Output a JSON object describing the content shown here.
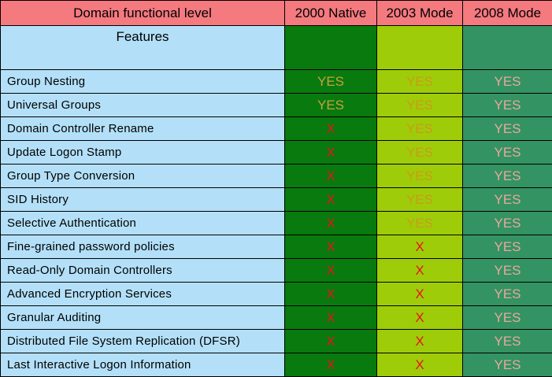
{
  "header": {
    "level_label": "Domain functional level",
    "mode_2000": "2000 Native",
    "mode_2003": "2003 Mode",
    "mode_2008": "2008 Mode",
    "features_label": "Features"
  },
  "rows": [
    {
      "feature": "Group Nesting",
      "v2000": "YES",
      "v2003": "YES",
      "v2008": "YES"
    },
    {
      "feature": "Universal Groups",
      "v2000": "YES",
      "v2003": "YES",
      "v2008": "YES"
    },
    {
      "feature": "Domain Controller Rename",
      "v2000": "X",
      "v2003": "YES",
      "v2008": "YES"
    },
    {
      "feature": "Update Logon Stamp",
      "v2000": "X",
      "v2003": "YES",
      "v2008": "YES"
    },
    {
      "feature": "Group Type Conversion",
      "v2000": "X",
      "v2003": "YES",
      "v2008": "YES"
    },
    {
      "feature": "SID History",
      "v2000": "X",
      "v2003": "YES",
      "v2008": "YES"
    },
    {
      "feature": "Selective Authentication",
      "v2000": "X",
      "v2003": "YES",
      "v2008": "YES"
    },
    {
      "feature": "Fine-grained password policies",
      "v2000": "X",
      "v2003": "X",
      "v2008": "YES"
    },
    {
      "feature": "Read-Only Domain Controllers",
      "v2000": "X",
      "v2003": "X",
      "v2008": "YES"
    },
    {
      "feature": "Advanced Encryption Services",
      "v2000": "X",
      "v2003": "X",
      "v2008": "YES"
    },
    {
      "feature": "Granular Auditing",
      "v2000": "X",
      "v2003": "X",
      "v2008": "YES"
    },
    {
      "feature": "Distributed File System Replication (DFSR)",
      "v2000": "X",
      "v2003": "X",
      "v2008": "YES"
    },
    {
      "feature": "Last Interactive Logon Information",
      "v2000": "X",
      "v2003": "X",
      "v2008": "YES"
    }
  ],
  "colors": {
    "header_bg": "#f47a80",
    "feature_bg": "#b3e0f8",
    "col_2000_bg": "#097a0e",
    "col_2003_bg": "#9fcc09",
    "col_2008_bg": "#349362",
    "no_text": "#e8121c"
  }
}
